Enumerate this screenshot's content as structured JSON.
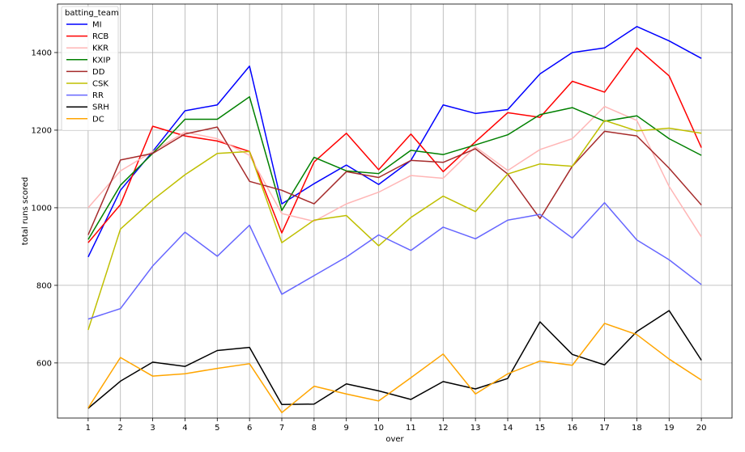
{
  "chart_data": {
    "type": "line",
    "xlabel": "over",
    "ylabel": "total runs scored",
    "x": [
      1,
      2,
      3,
      4,
      5,
      6,
      7,
      8,
      9,
      10,
      11,
      12,
      13,
      14,
      15,
      16,
      17,
      18,
      19,
      20
    ],
    "xlim": [
      0.05,
      20.95
    ],
    "ylim": [
      458,
      1525
    ],
    "yticks": [
      600,
      800,
      1000,
      1200,
      1400
    ],
    "grid": true,
    "legend": {
      "title": "batting_team",
      "placement": "top-left"
    },
    "series": [
      {
        "name": "MI",
        "color": "#0000ff",
        "values": [
          873,
          1045,
          1145,
          1250,
          1265,
          1365,
          1010,
          1062,
          1110,
          1060,
          1122,
          1265,
          1243,
          1253,
          1345,
          1400,
          1412,
          1467,
          1430,
          1385
        ]
      },
      {
        "name": "RCB",
        "color": "#ff0000",
        "values": [
          910,
          1008,
          1210,
          1185,
          1172,
          1145,
          935,
          1118,
          1192,
          1098,
          1190,
          1093,
          1170,
          1245,
          1233,
          1326,
          1298,
          1412,
          1340,
          1155
        ]
      },
      {
        "name": "KKR",
        "color": "#ffb6b6",
        "values": [
          1000,
          1095,
          1145,
          1195,
          1178,
          1135,
          985,
          965,
          1010,
          1040,
          1083,
          1076,
          1157,
          1096,
          1150,
          1178,
          1261,
          1225,
          1055,
          925
        ]
      },
      {
        "name": "KXIP",
        "color": "#008000",
        "values": [
          918,
          1058,
          1140,
          1228,
          1228,
          1286,
          993,
          1130,
          1095,
          1088,
          1148,
          1137,
          1162,
          1188,
          1240,
          1258,
          1223,
          1237,
          1178,
          1135
        ]
      },
      {
        "name": "DD",
        "color": "#a52a2a",
        "values": [
          930,
          1123,
          1140,
          1190,
          1208,
          1068,
          1045,
          1010,
          1093,
          1078,
          1122,
          1117,
          1152,
          1087,
          972,
          1107,
          1197,
          1185,
          1102,
          1007
        ]
      },
      {
        "name": "CSK",
        "color": "#bfbf00",
        "values": [
          685,
          945,
          1020,
          1085,
          1140,
          1145,
          910,
          968,
          980,
          902,
          975,
          1030,
          990,
          1087,
          1113,
          1107,
          1225,
          1198,
          1205,
          1192
        ]
      },
      {
        "name": "RR",
        "color": "#6666ff",
        "values": [
          713,
          740,
          850,
          937,
          875,
          955,
          777,
          825,
          873,
          930,
          890,
          950,
          920,
          968,
          983,
          922,
          1013,
          917,
          866,
          802
        ]
      },
      {
        "name": "SRH",
        "color": "#000000",
        "values": [
          483,
          553,
          602,
          591,
          632,
          640,
          493,
          494,
          546,
          528,
          506,
          552,
          533,
          560,
          706,
          622,
          595,
          681,
          735,
          607
        ]
      },
      {
        "name": "DC",
        "color": "#ffa500",
        "values": [
          484,
          614,
          566,
          572,
          586,
          598,
          472,
          540,
          520,
          502,
          562,
          623,
          520,
          572,
          605,
          594,
          702,
          673,
          610,
          556
        ]
      }
    ]
  }
}
